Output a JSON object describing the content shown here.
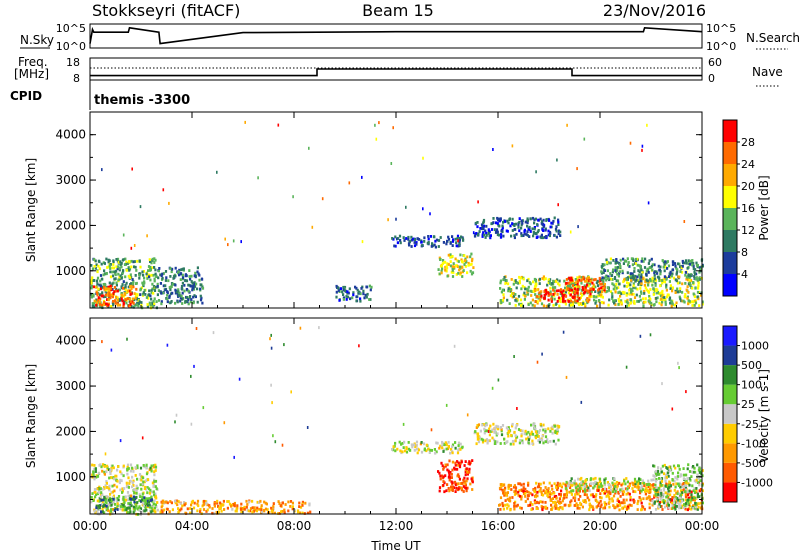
{
  "header": {
    "station": "Stokkseyri (fitACF)",
    "beam": "Beam 15",
    "date": "23/Nov/2016"
  },
  "top_panels": {
    "nsky_label": "N.Sky",
    "nsky_ticks": [
      "10^5",
      "10^0"
    ],
    "nsearch_label": "N.Search",
    "nsearch_ticks": [
      "10^5",
      "10^0"
    ],
    "freq_label_1": "Freq.",
    "freq_label_2": "[MHz]",
    "freq_ticks": [
      "18",
      "8"
    ],
    "nave_label": "Nave",
    "nave_ticks": [
      "60",
      "0"
    ],
    "cpid_label": "CPID",
    "cpid_value": "themis -3300"
  },
  "colors": {
    "power_scale": [
      "#0000ff",
      "#1c3c9c",
      "#2e7a62",
      "#5ab45a",
      "#ffff00",
      "#ffaa00",
      "#ff6a00",
      "#ff0000"
    ],
    "velocity_scale": [
      "#ff0000",
      "#ff5a00",
      "#ff9900",
      "#ffcc00",
      "#c8c8c8",
      "#66cc33",
      "#2e8b2e",
      "#1e3c96",
      "#1a1aff"
    ]
  },
  "chart_data": [
    {
      "type": "heatmap",
      "name": "power",
      "ylabel": "Slant Range [km]",
      "xlabel": "",
      "xlim": [
        0,
        24
      ],
      "ylim": [
        180,
        4500
      ],
      "x_ticks": [
        0,
        4,
        8,
        12,
        16,
        20,
        24
      ],
      "x_tick_labels": [
        "",
        "",
        "",
        "",
        "",
        "",
        ""
      ],
      "y_ticks": [
        1000,
        2000,
        3000,
        4000
      ],
      "y_tick_labels": [
        "1000",
        "2000",
        "3000",
        "4000"
      ],
      "colorbar_label": "Power [dB]",
      "colorbar_ticks": [
        "4",
        "8",
        "12",
        "16",
        "20",
        "24",
        "28"
      ],
      "colorbar_range": [
        0,
        32
      ],
      "regions": [
        {
          "x": [
            0.0,
            2.6
          ],
          "y": [
            200,
            1300
          ],
          "level": 0.4
        },
        {
          "x": [
            0.1,
            1.8
          ],
          "y": [
            250,
            700
          ],
          "level": 0.8
        },
        {
          "x": [
            2.6,
            4.4
          ],
          "y": [
            300,
            1100
          ],
          "level": 0.3
        },
        {
          "x": [
            9.6,
            11.0
          ],
          "y": [
            350,
            700
          ],
          "level": 0.25
        },
        {
          "x": [
            11.8,
            14.6
          ],
          "y": [
            1550,
            1800
          ],
          "level": 0.2
        },
        {
          "x": [
            13.6,
            15.0
          ],
          "y": [
            900,
            1400
          ],
          "level": 0.55
        },
        {
          "x": [
            15.0,
            18.4
          ],
          "y": [
            1750,
            2200
          ],
          "level": 0.2
        },
        {
          "x": [
            16.0,
            24.0
          ],
          "y": [
            250,
            900
          ],
          "level": 0.5
        },
        {
          "x": [
            17.4,
            19.6
          ],
          "y": [
            350,
            650
          ],
          "level": 0.9
        },
        {
          "x": [
            18.6,
            20.2
          ],
          "y": [
            600,
            900
          ],
          "level": 0.85
        },
        {
          "x": [
            20.0,
            24.0
          ],
          "y": [
            800,
            1300
          ],
          "level": 0.35
        }
      ]
    },
    {
      "type": "heatmap",
      "name": "velocity",
      "ylabel": "Slant Range [km]",
      "xlabel": "Time UT",
      "xlim": [
        0,
        24
      ],
      "ylim": [
        180,
        4500
      ],
      "x_ticks": [
        0,
        4,
        8,
        12,
        16,
        20,
        24
      ],
      "x_tick_labels": [
        "00:00",
        "04:00",
        "08:00",
        "12:00",
        "16:00",
        "20:00",
        "00:00"
      ],
      "y_ticks": [
        1000,
        2000,
        3000,
        4000
      ],
      "y_tick_labels": [
        "1000",
        "2000",
        "3000",
        "4000"
      ],
      "colorbar_label": "Velocity [m s-1]",
      "colorbar_ticks": [
        "-1000",
        "-500",
        "-100",
        "-25",
        "25",
        "100",
        "500",
        "1000"
      ],
      "colorbar_range": [
        -1200,
        1200
      ],
      "regions": [
        {
          "x": [
            0.0,
            2.6
          ],
          "y": [
            200,
            1300
          ],
          "level": 0.5
        },
        {
          "x": [
            0.2,
            2.4
          ],
          "y": [
            250,
            600
          ],
          "level": 0.7
        },
        {
          "x": [
            2.6,
            8.6
          ],
          "y": [
            220,
            500
          ],
          "level": 0.3
        },
        {
          "x": [
            11.8,
            14.6
          ],
          "y": [
            1550,
            1800
          ],
          "level": 0.5
        },
        {
          "x": [
            13.6,
            15.0
          ],
          "y": [
            700,
            1400
          ],
          "level": 0.1
        },
        {
          "x": [
            15.0,
            18.4
          ],
          "y": [
            1750,
            2200
          ],
          "level": 0.5
        },
        {
          "x": [
            16.0,
            24.0
          ],
          "y": [
            300,
            900
          ],
          "level": 0.25
        },
        {
          "x": [
            18.6,
            22.0
          ],
          "y": [
            700,
            1000
          ],
          "level": 0.5
        },
        {
          "x": [
            22.0,
            24.0
          ],
          "y": [
            300,
            1300
          ],
          "level": 0.6
        }
      ]
    },
    {
      "type": "line",
      "name": "nsky",
      "x": [
        0,
        0.1,
        0.15,
        1.5,
        1.55,
        2.7,
        2.75,
        6,
        12,
        18,
        21.7,
        21.75,
        24
      ],
      "y": [
        1,
        4.2,
        3.6,
        3.6,
        4.6,
        3.6,
        1,
        3.5,
        3.7,
        3.7,
        3.7,
        4.6,
        3.7
      ]
    },
    {
      "type": "line",
      "name": "freq",
      "x": [
        0,
        8.9,
        8.9,
        18.9,
        18.9,
        24
      ],
      "y": [
        10,
        10,
        13,
        13,
        10,
        10
      ],
      "nave": [
        0,
        24
      ]
    }
  ]
}
